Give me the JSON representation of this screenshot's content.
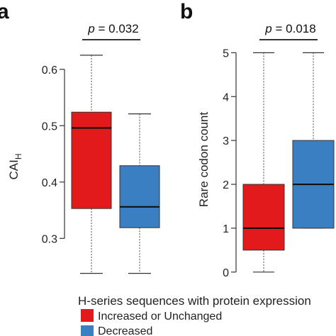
{
  "chart_data": [
    {
      "type": "box",
      "panel_letter": "a",
      "ylabel_main": "CAI",
      "ylabel_sub": "H",
      "ylim": [
        0.235,
        0.645
      ],
      "yticks": [
        0.3,
        0.4,
        0.5,
        0.6
      ],
      "ytick_labels": [
        "0.3",
        "0.4",
        "0.5",
        "0.6"
      ],
      "series": [
        {
          "legend_index": 0,
          "min": 0.238,
          "q1": 0.353,
          "median": 0.496,
          "q3": 0.524,
          "max": 0.625
        },
        {
          "legend_index": 1,
          "min": 0.238,
          "q1": 0.319,
          "median": 0.356,
          "q3": 0.429,
          "max": 0.521
        }
      ],
      "annotation": {
        "p_symbol": "p",
        "p_rest": " = 0.032"
      }
    },
    {
      "type": "box",
      "panel_letter": "b",
      "ylabel": "Rare codon count",
      "ylim": [
        -0.1,
        5.2
      ],
      "yticks": [
        0,
        1,
        2,
        3,
        4,
        5
      ],
      "ytick_labels": [
        "0",
        "1",
        "2",
        "3",
        "4",
        "5"
      ],
      "series": [
        {
          "legend_index": 0,
          "min": 0,
          "q1": 0.5,
          "median": 1,
          "q3": 2,
          "max": 5
        },
        {
          "legend_index": 1,
          "min": 1,
          "q1": 1,
          "median": 2,
          "q3": 3,
          "max": 5
        }
      ],
      "annotation": {
        "p_symbol": "p",
        "p_rest": " = 0.018"
      }
    }
  ],
  "legend": {
    "title": "H-series sequences with protein expression",
    "items": [
      {
        "label": "Increased or Unchanged",
        "color": "#e31a1c"
      },
      {
        "label": "Decreased",
        "color": "#3a7fc1"
      }
    ]
  }
}
